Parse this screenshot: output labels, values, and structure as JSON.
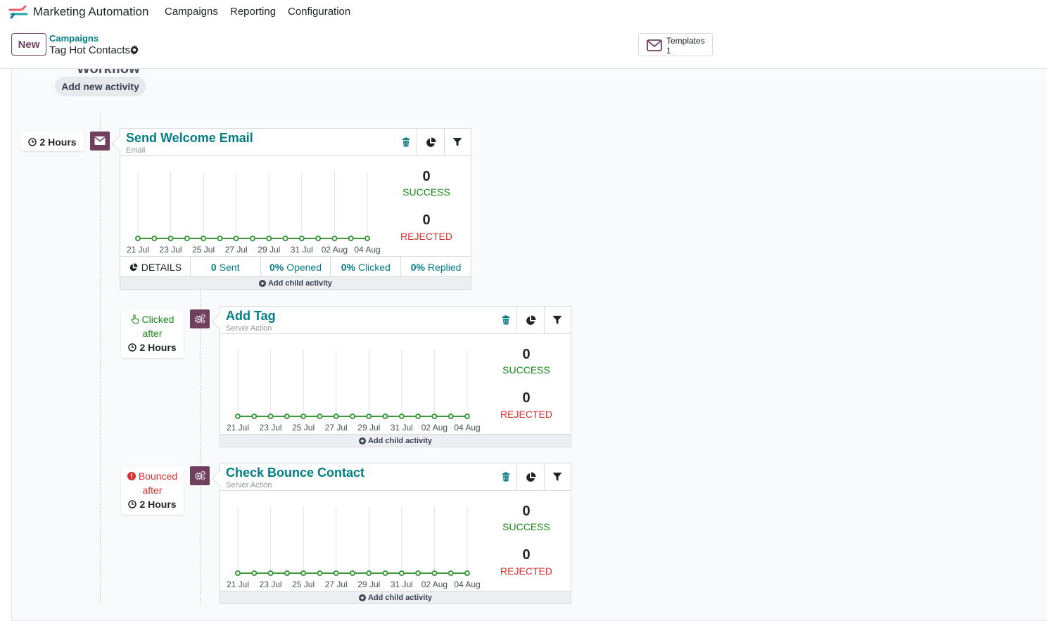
{
  "app": {
    "name": "Marketing Automation"
  },
  "menu": [
    "Campaigns",
    "Reporting",
    "Configuration"
  ],
  "control": {
    "new_label": "New",
    "breadcrumb_parent": "Campaigns",
    "breadcrumb_current": "Tag Hot Contacts",
    "templates_label": "Templates",
    "templates_count": "1"
  },
  "workflow": {
    "cut_title": "Workflow",
    "add_activity_label": "Add new activity"
  },
  "chart_dates": [
    "21 Jul",
    "23 Jul",
    "25 Jul",
    "27 Jul",
    "29 Jul",
    "31 Jul",
    "02 Aug",
    "04 Aug"
  ],
  "activities": [
    {
      "title": "Send Welcome Email",
      "type": "Email",
      "trigger_value": "2 Hours",
      "success_count": "0",
      "success_label": "SUCCESS",
      "rejected_count": "0",
      "rejected_label": "REJECTED",
      "stats": {
        "details_label": "DETAILS",
        "sent_value": "0",
        "sent_label": "Sent",
        "opened_value": "0%",
        "opened_label": "Opened",
        "clicked_value": "0%",
        "clicked_label": "Clicked",
        "replied_value": "0%",
        "replied_label": "Replied"
      },
      "add_child_label": "Add child activity"
    },
    {
      "title": "Add Tag",
      "type": "Server Action",
      "trigger_event": "Clicked",
      "trigger_after": "after",
      "trigger_value": "2 Hours",
      "success_count": "0",
      "success_label": "SUCCESS",
      "rejected_count": "0",
      "rejected_label": "REJECTED",
      "add_child_label": "Add child activity"
    },
    {
      "title": "Check Bounce Contact",
      "type": "Server Action",
      "trigger_event": "Bounced",
      "trigger_after": "after",
      "trigger_value": "2 Hours",
      "success_count": "0",
      "success_label": "SUCCESS",
      "rejected_count": "0",
      "rejected_label": "REJECTED",
      "add_child_label": "Add child activity"
    }
  ],
  "colors": {
    "brand": "#71405f",
    "link": "#017e84",
    "success": "#1a8a1a",
    "rejected": "#d9302f",
    "chart_line": "#3c9a3c"
  },
  "icons": [
    "brand-logo-icon",
    "gear-icon",
    "envelope-icon",
    "clock-icon",
    "cogs-icon",
    "trash-icon",
    "pie-chart-icon",
    "filter-icon",
    "plus-circle-icon",
    "pointer-hand-icon",
    "exclamation-circle-icon"
  ]
}
